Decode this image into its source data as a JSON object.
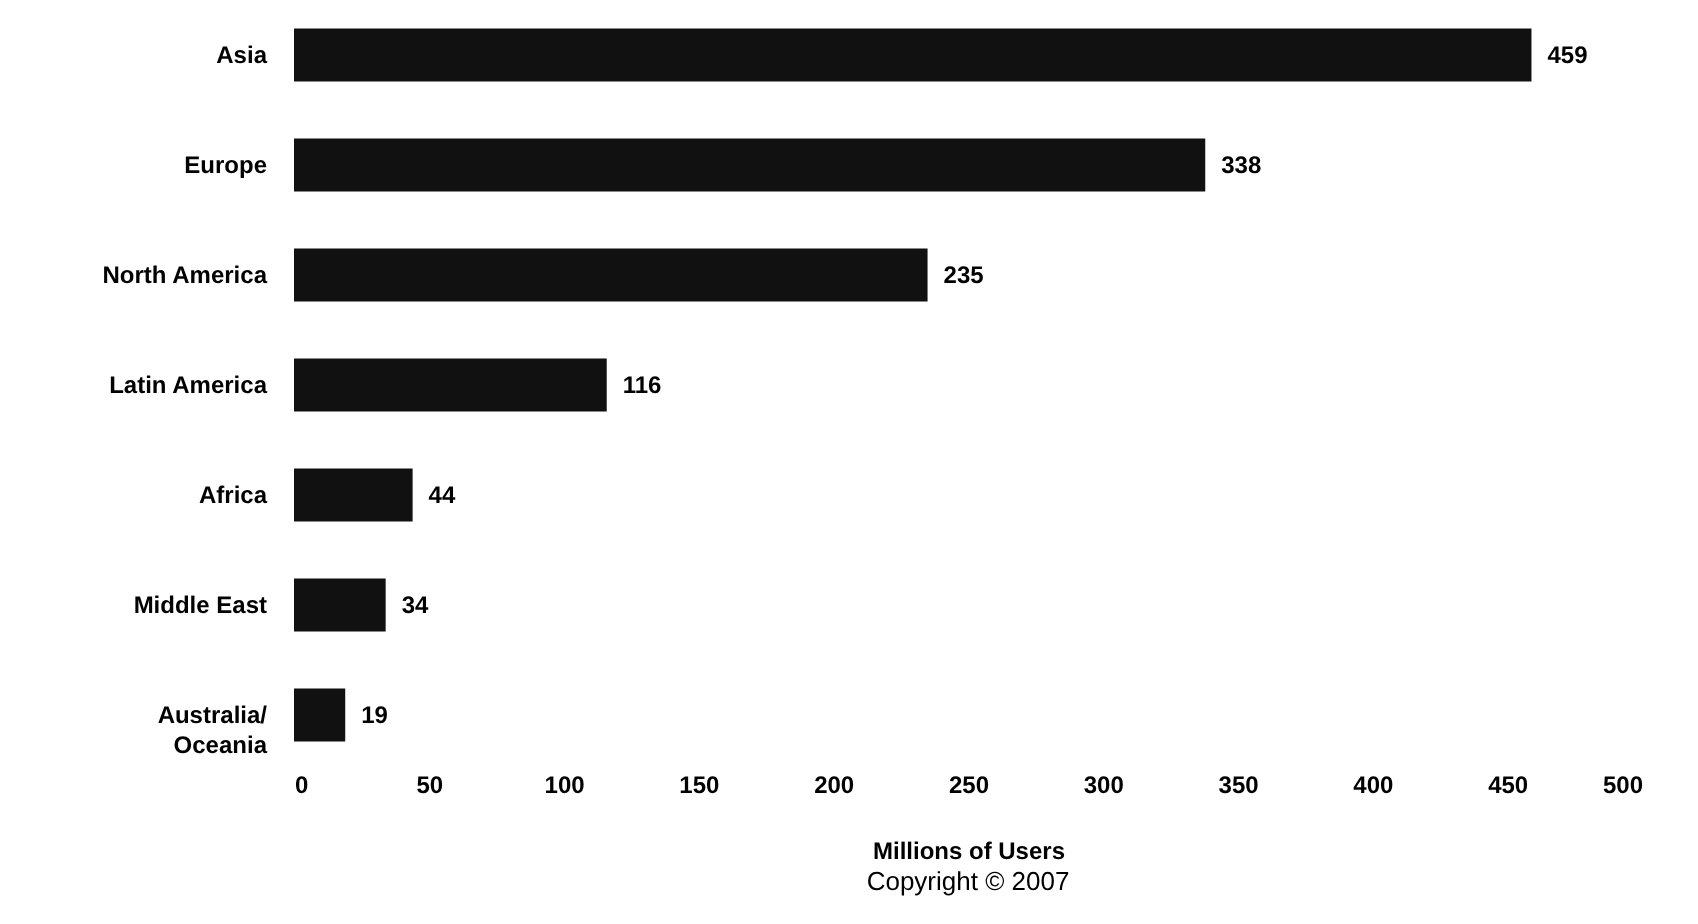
{
  "chart_data": {
    "type": "bar",
    "orientation": "horizontal",
    "categories": [
      "Asia",
      "Europe",
      "North America",
      "Latin America",
      "Africa",
      "Middle East",
      "Australia/\nOceania"
    ],
    "values": [
      459,
      338,
      235,
      116,
      44,
      34,
      19
    ],
    "color": "#111111",
    "xlim": [
      0,
      500
    ],
    "xticks": [
      0,
      50,
      100,
      150,
      200,
      250,
      300,
      350,
      400,
      450,
      500
    ],
    "xlabel": "Millions of Users",
    "data_labels": true,
    "annotations": [
      "Copyright © 2007"
    ]
  }
}
